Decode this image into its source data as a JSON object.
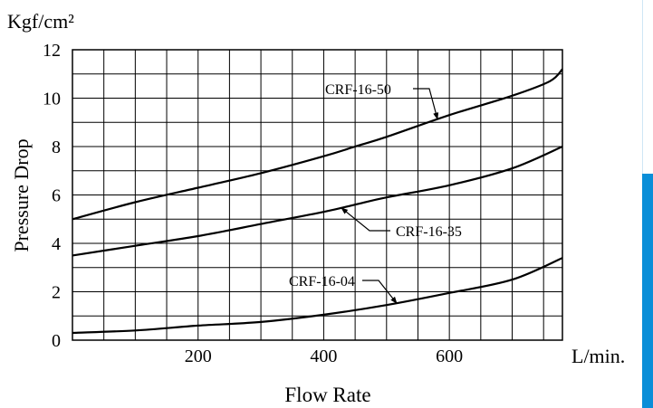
{
  "chart_data": {
    "type": "line",
    "title": "",
    "xlabel": "Flow Rate",
    "ylabel": "Pressure Drop",
    "y_unit": "Kgf/cm²",
    "x_unit": "L/min.",
    "xlim": [
      0,
      780
    ],
    "ylim": [
      0,
      12
    ],
    "x_ticks": [
      200,
      400,
      600
    ],
    "y_ticks": [
      0,
      2,
      4,
      6,
      8,
      10,
      12
    ],
    "grid": true,
    "series": [
      {
        "name": "CRF-16-50",
        "x": [
          0,
          100,
          200,
          300,
          400,
          450,
          500,
          600,
          700,
          760,
          780
        ],
        "y": [
          5.0,
          5.7,
          6.3,
          6.9,
          7.6,
          8.0,
          8.4,
          9.3,
          10.1,
          10.7,
          11.2
        ]
      },
      {
        "name": "CRF-16-35",
        "x": [
          0,
          100,
          200,
          300,
          400,
          450,
          500,
          600,
          700,
          780
        ],
        "y": [
          3.5,
          3.9,
          4.3,
          4.8,
          5.3,
          5.6,
          5.9,
          6.4,
          7.1,
          8.0
        ]
      },
      {
        "name": "CRF-16-04",
        "x": [
          0,
          100,
          200,
          300,
          400,
          500,
          600,
          700,
          780
        ],
        "y": [
          0.3,
          0.4,
          0.6,
          0.75,
          1.05,
          1.45,
          1.95,
          2.5,
          3.4
        ]
      }
    ],
    "annotations": [
      {
        "series": "CRF-16-50",
        "text": "CRF-16-50"
      },
      {
        "series": "CRF-16-35",
        "text": "CRF-16-35"
      },
      {
        "series": "CRF-16-04",
        "text": "CRF-16-04"
      }
    ]
  }
}
